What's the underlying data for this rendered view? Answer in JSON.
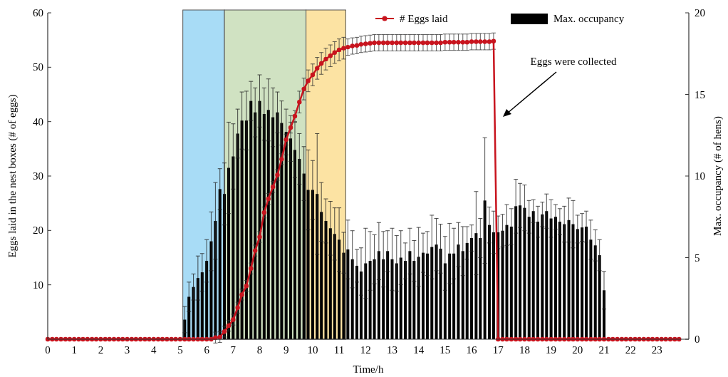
{
  "chart_data": {
    "type": "bar",
    "xlabel": "Time/h",
    "ylabel": "Eggs laid in the nest boxes (# of eggs)",
    "y2label": "Max. occupancy (# of hens)",
    "xlim": [
      0,
      24.2
    ],
    "xticks": [
      0,
      1,
      2,
      3,
      4,
      5,
      6,
      7,
      8,
      9,
      10,
      11,
      12,
      13,
      14,
      15,
      16,
      17,
      18,
      19,
      20,
      21,
      22,
      23
    ],
    "ylim": [
      0,
      60
    ],
    "yticks": [
      10,
      20,
      30,
      40,
      50,
      60
    ],
    "y2lim": [
      0,
      20
    ],
    "y2ticks": [
      0,
      5,
      10,
      15,
      20
    ],
    "legend": "top right",
    "grid": false,
    "marker": "circle",
    "line_style": "solid",
    "bands": [
      {
        "axis": "x",
        "from": 5.1,
        "to": 6.67,
        "color": "#a8dcf6"
      },
      {
        "axis": "x",
        "from": 6.67,
        "to": 9.75,
        "color": "#d0e2c2"
      },
      {
        "axis": "x",
        "from": 9.75,
        "to": 11.25,
        "color": "#fce3a3"
      }
    ],
    "annotations": [
      "Eggs were collected"
    ],
    "series": [
      {
        "type": "line",
        "name": "# Eggs laid",
        "color": "#c8141e",
        "x": [
          0,
          0.17,
          0.33,
          0.5,
          0.67,
          0.83,
          1,
          1.17,
          1.33,
          1.5,
          1.67,
          1.83,
          2,
          2.17,
          2.33,
          2.5,
          2.67,
          2.83,
          3,
          3.17,
          3.33,
          3.5,
          3.67,
          3.83,
          4,
          4.17,
          4.33,
          4.5,
          4.67,
          4.83,
          5,
          5.17,
          5.33,
          5.5,
          5.67,
          5.83,
          6,
          6.17,
          6.33,
          6.5,
          6.67,
          6.83,
          7,
          7.17,
          7.33,
          7.5,
          7.67,
          7.83,
          8,
          8.17,
          8.33,
          8.5,
          8.67,
          8.83,
          9,
          9.17,
          9.33,
          9.5,
          9.67,
          9.83,
          10,
          10.17,
          10.33,
          10.5,
          10.67,
          10.83,
          11,
          11.17,
          11.33,
          11.5,
          11.67,
          11.83,
          12,
          12.17,
          12.33,
          12.5,
          12.67,
          12.83,
          13,
          13.17,
          13.33,
          13.5,
          13.67,
          13.83,
          14,
          14.17,
          14.33,
          14.5,
          14.67,
          14.83,
          15,
          15.17,
          15.33,
          15.5,
          15.67,
          15.83,
          16,
          16.17,
          16.33,
          16.5,
          16.67,
          16.83,
          17,
          17.17,
          17.33,
          17.5,
          17.67,
          17.83,
          18,
          18.17,
          18.33,
          18.5,
          18.67,
          18.83,
          19,
          19.17,
          19.33,
          19.5,
          19.67,
          19.83,
          20,
          20.17,
          20.33,
          20.5,
          20.67,
          20.83,
          21,
          21.17,
          21.33,
          21.5,
          21.67,
          21.83,
          22,
          22.17,
          22.33,
          22.5,
          22.67,
          22.83,
          23,
          23.17,
          23.33,
          23.5,
          23.67,
          23.83
        ],
        "values": [
          0,
          0,
          0,
          0,
          0,
          0,
          0,
          0,
          0,
          0,
          0,
          0,
          0,
          0,
          0,
          0,
          0,
          0,
          0,
          0,
          0,
          0,
          0,
          0,
          0,
          0,
          0,
          0,
          0,
          0,
          0,
          0,
          0,
          0,
          0,
          0,
          0,
          0,
          0.3,
          0.4,
          1.4,
          2.5,
          3.6,
          5.8,
          8.2,
          9.8,
          13,
          16.3,
          18.8,
          23.3,
          25.8,
          28,
          30.2,
          33.1,
          36.7,
          38.9,
          41,
          43.6,
          46,
          47.5,
          48.6,
          49.8,
          50.7,
          51.5,
          52.1,
          52.7,
          53.2,
          53.5,
          53.7,
          53.9,
          54.0,
          54.2,
          54.3,
          54.4,
          54.5,
          54.5,
          54.5,
          54.5,
          54.5,
          54.5,
          54.5,
          54.5,
          54.5,
          54.5,
          54.5,
          54.5,
          54.5,
          54.5,
          54.5,
          54.5,
          54.6,
          54.6,
          54.6,
          54.6,
          54.6,
          54.6,
          54.7,
          54.7,
          54.7,
          54.7,
          54.7,
          54.8,
          0,
          0,
          0,
          0,
          0,
          0,
          0,
          0,
          0,
          0,
          0,
          0,
          0,
          0,
          0,
          0,
          0,
          0,
          0,
          0,
          0,
          0,
          0,
          0,
          0,
          0,
          0,
          0,
          0,
          0,
          0,
          0,
          0,
          0,
          0,
          0,
          0,
          0,
          0,
          0,
          0,
          0
        ],
        "errors": [
          null,
          null,
          null,
          null,
          null,
          null,
          null,
          null,
          null,
          null,
          null,
          null,
          null,
          null,
          null,
          null,
          null,
          null,
          null,
          null,
          null,
          null,
          null,
          null,
          null,
          null,
          null,
          null,
          null,
          null,
          null,
          null,
          null,
          null,
          null,
          null,
          null,
          null,
          1,
          1,
          1,
          1,
          1,
          1,
          1,
          1,
          1,
          1,
          1,
          1,
          1,
          1,
          1,
          1,
          1,
          1,
          1,
          2,
          2,
          2,
          2,
          2,
          2,
          2,
          2,
          2,
          2,
          2,
          1.5,
          1.5,
          1.5,
          1.5,
          1.5,
          1.5,
          1.5,
          1.5,
          1.5,
          1.5,
          1.5,
          1.5,
          1.5,
          1.5,
          1.5,
          1.5,
          1.5,
          1.5,
          1.5,
          1.5,
          1.5,
          1.5,
          1.5,
          1.5,
          1.5,
          1.5,
          1.5,
          1.5,
          1.5,
          1.5,
          1.5,
          1.5,
          1.5,
          1.5,
          null,
          null,
          null,
          null,
          null,
          null,
          null,
          null,
          null,
          null,
          null,
          null,
          null,
          null,
          null,
          null,
          null,
          null,
          null,
          null,
          null,
          null,
          null,
          null,
          null,
          null,
          null,
          null,
          null,
          null,
          null,
          null,
          null,
          null,
          null,
          null,
          null,
          null,
          null,
          null,
          null,
          null
        ]
      },
      {
        "name": "Max. occupancy",
        "color": "#000000",
        "axis": "y2",
        "x": [
          5.17,
          5.33,
          5.5,
          5.67,
          5.83,
          6,
          6.17,
          6.33,
          6.5,
          6.67,
          6.83,
          7,
          7.17,
          7.33,
          7.5,
          7.67,
          7.83,
          8,
          8.17,
          8.33,
          8.5,
          8.67,
          8.83,
          9,
          9.17,
          9.33,
          9.5,
          9.67,
          9.83,
          10,
          10.17,
          10.33,
          10.5,
          10.67,
          10.83,
          11,
          11.17,
          11.33,
          11.5,
          11.67,
          11.83,
          12,
          12.17,
          12.33,
          12.5,
          12.67,
          12.83,
          13,
          13.17,
          13.33,
          13.5,
          13.67,
          13.83,
          14,
          14.17,
          14.33,
          14.5,
          14.67,
          14.83,
          15,
          15.17,
          15.33,
          15.5,
          15.67,
          15.83,
          16,
          16.17,
          16.33,
          16.5,
          16.67,
          16.83,
          17,
          17.17,
          17.33,
          17.5,
          17.67,
          17.83,
          18,
          18.17,
          18.33,
          18.5,
          18.67,
          18.83,
          19,
          19.17,
          19.33,
          19.5,
          19.67,
          19.83,
          20,
          20.17,
          20.33,
          20.5,
          20.67,
          20.83,
          21
        ],
        "values": [
          1.2,
          2.6,
          3.2,
          3.75,
          4.1,
          4.8,
          6.0,
          7.25,
          9.2,
          8.9,
          10.5,
          11.2,
          12.6,
          13.4,
          13.4,
          14.6,
          13.9,
          14.6,
          13.8,
          14.05,
          13.6,
          13.9,
          13.25,
          12.7,
          12.3,
          11.6,
          11.05,
          10.15,
          9.15,
          9.15,
          8.9,
          7.8,
          7.25,
          6.8,
          6.45,
          6.1,
          5.3,
          5.5,
          4.9,
          4.5,
          4.15,
          4.65,
          4.8,
          4.9,
          5.4,
          4.9,
          5.4,
          4.9,
          4.65,
          5.0,
          4.8,
          5.4,
          4.8,
          5.05,
          5.3,
          5.25,
          5.65,
          5.8,
          5.55,
          4.65,
          5.25,
          5.25,
          5.8,
          5.4,
          5.9,
          6.2,
          6.5,
          6.2,
          8.5,
          7.0,
          6.55,
          6.55,
          6.65,
          7.0,
          6.9,
          8.15,
          8.2,
          8.05,
          7.5,
          7.85,
          7.2,
          7.65,
          7.85,
          7.4,
          7.5,
          7.2,
          7.05,
          7.3,
          7.05,
          6.75,
          6.85,
          6.9,
          6.1,
          5.75,
          5.15,
          3.0
        ],
        "errors": [
          0.8,
          0.9,
          0.8,
          1.35,
          1.15,
          1.3,
          1.8,
          2.35,
          1.25,
          1.9,
          2.8,
          2.0,
          1.5,
          1.75,
          1.8,
          1.2,
          1.5,
          1.6,
          1.6,
          1.9,
          1.8,
          1.25,
          1.35,
          1.4,
          1.4,
          1.7,
          1.55,
          1.65,
          2.45,
          1.8,
          3.7,
          1.8,
          1.35,
          1.65,
          1.6,
          1.95,
          1.25,
          1.8,
          1.75,
          1.0,
          1.45,
          2.15,
          1.8,
          1.5,
          1.75,
          1.7,
          1.25,
          1.9,
          1.7,
          1.65,
          1.1,
          1.4,
          1.25,
          1.8,
          1.2,
          1.35,
          1.95,
          1.6,
          1.5,
          1.65,
          1.85,
          1.55,
          1.35,
          1.5,
          1.0,
          0.8,
          2.55,
          1.2,
          3.85,
          1.1,
          1.3,
          1.0,
          1.0,
          1.25,
          1.1,
          1.65,
          1.35,
          1.4,
          1.0,
          0.7,
          0.95,
          0.75,
          1.05,
          1.15,
          0.75,
          0.8,
          1.1,
          1.35,
          1.45,
          0.85,
          0.85,
          0.95,
          1.2,
          0.95,
          0.95,
          1.15
        ]
      }
    ]
  }
}
